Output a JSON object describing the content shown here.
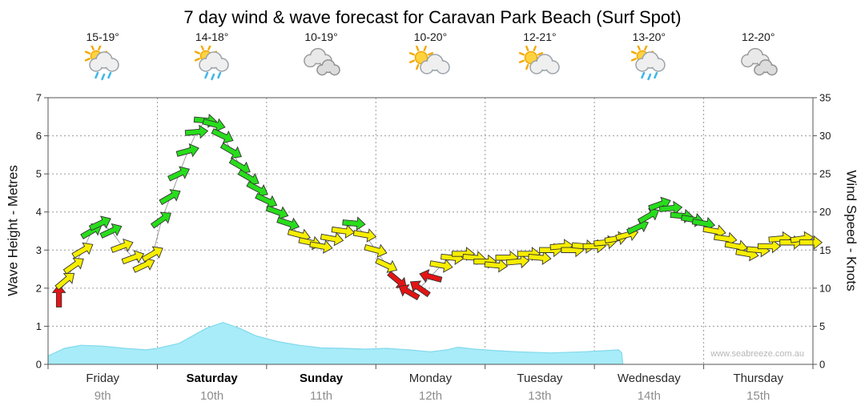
{
  "title": "7 day wind & wave forecast for Caravan Park Beach (Surf Spot)",
  "watermark": "www.seabreeze.com.au",
  "days": [
    {
      "temp": "15-19°",
      "icon": "sun-cloud-rain",
      "name": "Friday",
      "date": "9th",
      "weekend": false
    },
    {
      "temp": "14-18°",
      "icon": "sun-cloud-rain",
      "name": "Saturday",
      "date": "10th",
      "weekend": true
    },
    {
      "temp": "10-19°",
      "icon": "cloud",
      "name": "Sunday",
      "date": "11th",
      "weekend": true
    },
    {
      "temp": "10-20°",
      "icon": "sun-cloud",
      "name": "Monday",
      "date": "12th",
      "weekend": false
    },
    {
      "temp": "12-21°",
      "icon": "sun-cloud",
      "name": "Tuesday",
      "date": "13th",
      "weekend": false
    },
    {
      "temp": "13-20°",
      "icon": "sun-cloud-rain",
      "name": "Wednesday",
      "date": "14th",
      "weekend": false
    },
    {
      "temp": "12-20°",
      "icon": "cloud",
      "name": "Thursday",
      "date": "15th",
      "weekend": false
    }
  ],
  "chart": {
    "left_axis_label": "Wave Height - Metres",
    "right_axis_label": "Wind Speed - Knots",
    "left_ticks": [
      0,
      1,
      2,
      3,
      4,
      5,
      6,
      7
    ],
    "right_ticks": [
      0,
      5,
      10,
      15,
      20,
      25,
      30,
      35
    ]
  },
  "colors": {
    "wave_fill": "#a7ecf8",
    "wave_edge": "#82d9ec",
    "wind_red": "#e41414",
    "wind_yellow": "#f8ee00",
    "wind_green": "#28dd1c",
    "grid": "#9a9a9a",
    "axis": "#555555",
    "tick_text": "#1a1a1a",
    "trend_line": "#888888"
  },
  "chart_data": [
    {
      "type": "area",
      "name": "wave-height",
      "ylabel": "Wave Height - Metres",
      "ylim": [
        0,
        7
      ],
      "x_unit": "days from Friday 9th (0) to Thursday 15th (7)",
      "points": [
        [
          0.0,
          0.22
        ],
        [
          0.15,
          0.42
        ],
        [
          0.3,
          0.5
        ],
        [
          0.5,
          0.48
        ],
        [
          0.7,
          0.42
        ],
        [
          0.9,
          0.38
        ],
        [
          1.0,
          0.42
        ],
        [
          1.2,
          0.55
        ],
        [
          1.45,
          0.95
        ],
        [
          1.6,
          1.1
        ],
        [
          1.75,
          0.95
        ],
        [
          1.9,
          0.75
        ],
        [
          2.1,
          0.6
        ],
        [
          2.3,
          0.5
        ],
        [
          2.5,
          0.43
        ],
        [
          2.7,
          0.42
        ],
        [
          2.9,
          0.4
        ],
        [
          3.1,
          0.42
        ],
        [
          3.3,
          0.38
        ],
        [
          3.5,
          0.33
        ],
        [
          3.65,
          0.38
        ],
        [
          3.75,
          0.45
        ],
        [
          3.9,
          0.4
        ],
        [
          4.1,
          0.36
        ],
        [
          4.3,
          0.33
        ],
        [
          4.6,
          0.3
        ],
        [
          4.9,
          0.33
        ],
        [
          5.1,
          0.36
        ],
        [
          5.22,
          0.38
        ],
        [
          5.25,
          0.3
        ],
        [
          5.26,
          0.0
        ]
      ]
    },
    {
      "type": "scatter",
      "name": "wind-speed-direction",
      "ylabel": "Wind Speed - Knots",
      "ylim": [
        0,
        35
      ],
      "point_format": "[day, knots, direction_deg(0=right), color r/y/g]",
      "points": [
        [
          0.1,
          9,
          -90,
          "r"
        ],
        [
          0.16,
          11,
          -40,
          "y"
        ],
        [
          0.24,
          13,
          -35,
          "y"
        ],
        [
          0.32,
          15,
          -30,
          "y"
        ],
        [
          0.4,
          17.5,
          -30,
          "g"
        ],
        [
          0.48,
          18.5,
          -25,
          "g"
        ],
        [
          0.58,
          17.5,
          -25,
          "g"
        ],
        [
          0.68,
          15.5,
          -20,
          "y"
        ],
        [
          0.78,
          14,
          -20,
          "y"
        ],
        [
          0.88,
          13,
          -25,
          "y"
        ],
        [
          0.96,
          14.5,
          -30,
          "y"
        ],
        [
          1.04,
          19,
          -35,
          "g"
        ],
        [
          1.12,
          22,
          -30,
          "g"
        ],
        [
          1.2,
          25,
          -25,
          "g"
        ],
        [
          1.28,
          28,
          -15,
          "g"
        ],
        [
          1.36,
          30.5,
          -5,
          "g"
        ],
        [
          1.44,
          32,
          5,
          "g"
        ],
        [
          1.52,
          31.5,
          15,
          "g"
        ],
        [
          1.6,
          30,
          25,
          "g"
        ],
        [
          1.68,
          28,
          30,
          "g"
        ],
        [
          1.76,
          26,
          30,
          "g"
        ],
        [
          1.84,
          24.5,
          30,
          "g"
        ],
        [
          1.92,
          23,
          28,
          "g"
        ],
        [
          2.0,
          21.5,
          25,
          "g"
        ],
        [
          2.1,
          20,
          20,
          "g"
        ],
        [
          2.2,
          18.5,
          18,
          "g"
        ],
        [
          2.3,
          17,
          15,
          "y"
        ],
        [
          2.4,
          16,
          12,
          "y"
        ],
        [
          2.5,
          15.5,
          10,
          "y"
        ],
        [
          2.6,
          16.5,
          10,
          "y"
        ],
        [
          2.7,
          17.5,
          8,
          "y"
        ],
        [
          2.8,
          18.5,
          5,
          "g"
        ],
        [
          2.9,
          17,
          10,
          "y"
        ],
        [
          3.0,
          15,
          15,
          "y"
        ],
        [
          3.1,
          13,
          25,
          "y"
        ],
        [
          3.2,
          11,
          40,
          "r"
        ],
        [
          3.3,
          9.5,
          210,
          "r"
        ],
        [
          3.4,
          10,
          215,
          "r"
        ],
        [
          3.5,
          11.5,
          195,
          "r"
        ],
        [
          3.6,
          13,
          10,
          "y"
        ],
        [
          3.7,
          14,
          5,
          "y"
        ],
        [
          3.8,
          14.5,
          0,
          "y"
        ],
        [
          3.9,
          14,
          5,
          "y"
        ],
        [
          4.0,
          13.5,
          0,
          "y"
        ],
        [
          4.1,
          13,
          5,
          "y"
        ],
        [
          4.2,
          14,
          0,
          "y"
        ],
        [
          4.3,
          13.5,
          -5,
          "y"
        ],
        [
          4.4,
          14.5,
          0,
          "y"
        ],
        [
          4.5,
          14,
          5,
          "y"
        ],
        [
          4.6,
          15,
          0,
          "y"
        ],
        [
          4.7,
          15.5,
          -5,
          "y"
        ],
        [
          4.8,
          15,
          0,
          "y"
        ],
        [
          4.9,
          15.5,
          5,
          "y"
        ],
        [
          5.0,
          15.5,
          0,
          "y"
        ],
        [
          5.1,
          16,
          -5,
          "y"
        ],
        [
          5.2,
          16.5,
          -10,
          "y"
        ],
        [
          5.3,
          17,
          -15,
          "y"
        ],
        [
          5.4,
          18,
          -25,
          "g"
        ],
        [
          5.5,
          19.5,
          -30,
          "g"
        ],
        [
          5.6,
          21,
          -20,
          "g"
        ],
        [
          5.7,
          20.5,
          -5,
          "g"
        ],
        [
          5.8,
          19.5,
          5,
          "g"
        ],
        [
          5.9,
          19,
          10,
          "g"
        ],
        [
          6.0,
          18.5,
          10,
          "g"
        ],
        [
          6.1,
          17.5,
          10,
          "y"
        ],
        [
          6.2,
          16.5,
          8,
          "y"
        ],
        [
          6.3,
          15.5,
          10,
          "y"
        ],
        [
          6.4,
          14.5,
          10,
          "y"
        ],
        [
          6.5,
          15,
          5,
          "y"
        ],
        [
          6.6,
          15.5,
          0,
          "y"
        ],
        [
          6.7,
          16.5,
          -5,
          "y"
        ],
        [
          6.8,
          16,
          0,
          "y"
        ],
        [
          6.9,
          16.5,
          -8,
          "y"
        ],
        [
          6.98,
          16,
          0,
          "y"
        ]
      ]
    }
  ]
}
